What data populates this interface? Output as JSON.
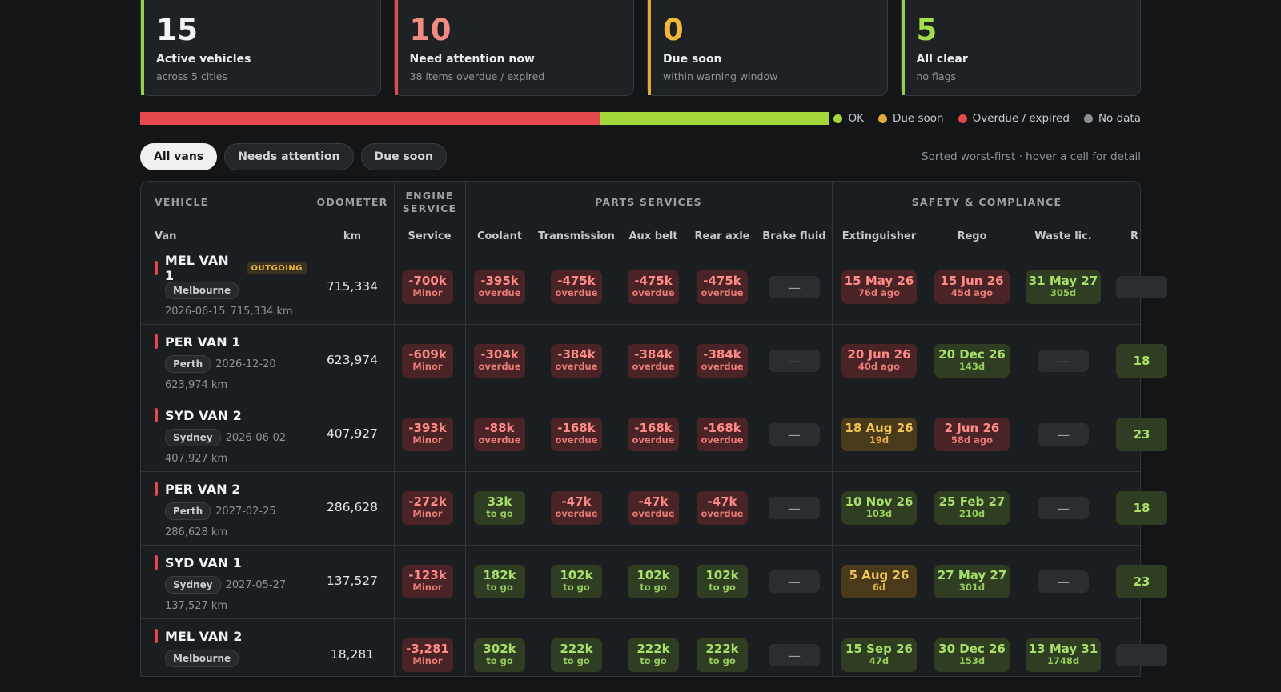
{
  "cards": [
    {
      "number": "15",
      "label": "Active vehicles",
      "sub": "across 5 cities",
      "color": "#8fd14f",
      "numColor": "#f2f3f4"
    },
    {
      "number": "10",
      "label": "Need attention now",
      "sub": "38 items overdue / expired",
      "color": "#e5484d",
      "numColor": "#f28b82"
    },
    {
      "number": "0",
      "label": "Due soon",
      "sub": "within warning window",
      "color": "#e5a93b",
      "numColor": "#f2b63d"
    },
    {
      "number": "5",
      "label": "All clear",
      "sub": "no flags",
      "color": "#8fd14f",
      "numColor": "#a3dd4c"
    }
  ],
  "status_distribution": {
    "overdue_fraction": 0.667,
    "ok_fraction": 0.333,
    "colors": {
      "ok": "#a3d63a",
      "due": "#e5a93b",
      "overdue": "#e5484d",
      "nodata": "#8a8f93"
    }
  },
  "legend": [
    "OK",
    "Due soon",
    "Overdue / expired",
    "No data"
  ],
  "filters": {
    "all": "All vans",
    "attention": "Needs attention",
    "due": "Due soon",
    "hint": "Sorted worst-first · hover a cell for detail"
  },
  "headers": {
    "group_vehicle": "VEHICLE",
    "group_odometer": "ODOMETER",
    "group_engine_1": "ENGINE",
    "group_engine_2": "SERVICE",
    "group_parts": "PARTS SERVICES",
    "group_safety": "SAFETY & COMPLIANCE",
    "van": "Van",
    "km": "km",
    "service": "Service",
    "coolant": "Coolant",
    "transmission": "Transmission",
    "aux_belt": "Aux belt",
    "rear_axle": "Rear axle",
    "brake_fluid": "Brake fluid",
    "extinguisher": "Extinguisher",
    "rego": "Rego",
    "waste": "Waste lic.",
    "next_col": "R"
  },
  "rows": [
    {
      "name": "MEL VAN 1",
      "tag": "OUTGOING",
      "city": "Melbourne",
      "date": "2026-06-15",
      "km_text": "715,334 km",
      "odometer": "715,334",
      "cells": [
        [
          "-700k",
          "Minor",
          "red"
        ],
        [
          "-395k",
          "overdue",
          "red"
        ],
        [
          "-475k",
          "overdue",
          "red"
        ],
        [
          "-475k",
          "overdue",
          "red"
        ],
        [
          "-475k",
          "overdue",
          "red"
        ],
        [
          "—",
          "",
          "none"
        ],
        [
          "15 May 26",
          "76d ago",
          "red"
        ],
        [
          "15 Jun 26",
          "45d ago",
          "red"
        ],
        [
          "31 May 27",
          "305d",
          "green"
        ],
        [
          "",
          "",
          "none"
        ]
      ]
    },
    {
      "name": "PER VAN 1",
      "tag": "",
      "city": "Perth",
      "date": "2026-12-20",
      "km_text": "623,974 km",
      "odometer": "623,974",
      "cells": [
        [
          "-609k",
          "Minor",
          "red"
        ],
        [
          "-304k",
          "overdue",
          "red"
        ],
        [
          "-384k",
          "overdue",
          "red"
        ],
        [
          "-384k",
          "overdue",
          "red"
        ],
        [
          "-384k",
          "overdue",
          "red"
        ],
        [
          "—",
          "",
          "none"
        ],
        [
          "20 Jun 26",
          "40d ago",
          "red"
        ],
        [
          "20 Dec 26",
          "143d",
          "green"
        ],
        [
          "—",
          "",
          "none"
        ],
        [
          "18",
          "",
          "green"
        ]
      ]
    },
    {
      "name": "SYD VAN 2",
      "tag": "",
      "city": "Sydney",
      "date": "2026-06-02",
      "km_text": "407,927 km",
      "odometer": "407,927",
      "cells": [
        [
          "-393k",
          "Minor",
          "red"
        ],
        [
          "-88k",
          "overdue",
          "red"
        ],
        [
          "-168k",
          "overdue",
          "red"
        ],
        [
          "-168k",
          "overdue",
          "red"
        ],
        [
          "-168k",
          "overdue",
          "red"
        ],
        [
          "—",
          "",
          "none"
        ],
        [
          "18 Aug 26",
          "19d",
          "amber"
        ],
        [
          "2 Jun 26",
          "58d ago",
          "red"
        ],
        [
          "—",
          "",
          "none"
        ],
        [
          "23",
          "",
          "green"
        ]
      ]
    },
    {
      "name": "PER VAN 2",
      "tag": "",
      "city": "Perth",
      "date": "2027-02-25",
      "km_text": "286,628 km",
      "odometer": "286,628",
      "cells": [
        [
          "-272k",
          "Minor",
          "red"
        ],
        [
          "33k",
          "to go",
          "green"
        ],
        [
          "-47k",
          "overdue",
          "red"
        ],
        [
          "-47k",
          "overdue",
          "red"
        ],
        [
          "-47k",
          "overdue",
          "red"
        ],
        [
          "—",
          "",
          "none"
        ],
        [
          "10 Nov 26",
          "103d",
          "green"
        ],
        [
          "25 Feb 27",
          "210d",
          "green"
        ],
        [
          "—",
          "",
          "none"
        ],
        [
          "18",
          "",
          "green"
        ]
      ]
    },
    {
      "name": "SYD VAN 1",
      "tag": "",
      "city": "Sydney",
      "date": "2027-05-27",
      "km_text": "137,527 km",
      "odometer": "137,527",
      "cells": [
        [
          "-123k",
          "Minor",
          "red"
        ],
        [
          "182k",
          "to go",
          "green"
        ],
        [
          "102k",
          "to go",
          "green"
        ],
        [
          "102k",
          "to go",
          "green"
        ],
        [
          "102k",
          "to go",
          "green"
        ],
        [
          "—",
          "",
          "none"
        ],
        [
          "5 Aug 26",
          "6d",
          "amber"
        ],
        [
          "27 May 27",
          "301d",
          "green"
        ],
        [
          "—",
          "",
          "none"
        ],
        [
          "23",
          "",
          "green"
        ]
      ]
    },
    {
      "name": "MEL VAN 2",
      "tag": "",
      "city": "Melbourne",
      "date": "",
      "km_text": "",
      "odometer": "18,281",
      "cells": [
        [
          "-3,281",
          "Minor",
          "red"
        ],
        [
          "302k",
          "to go",
          "green"
        ],
        [
          "222k",
          "to go",
          "green"
        ],
        [
          "222k",
          "to go",
          "green"
        ],
        [
          "222k",
          "to go",
          "green"
        ],
        [
          "—",
          "",
          "none"
        ],
        [
          "15 Sep 26",
          "47d",
          "green"
        ],
        [
          "30 Dec 26",
          "153d",
          "green"
        ],
        [
          "13 May 31",
          "1748d",
          "green"
        ],
        [
          "",
          "",
          "none"
        ]
      ]
    }
  ]
}
